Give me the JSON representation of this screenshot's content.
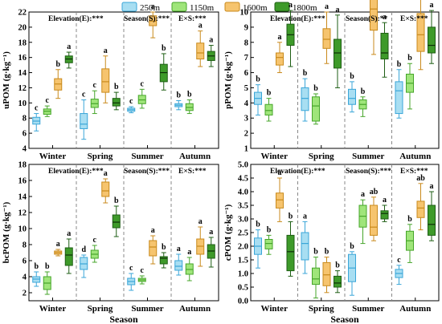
{
  "legend": [
    {
      "label": "250m",
      "color": "#a8def2",
      "edge": "#3aa6d8"
    },
    {
      "label": "1150m",
      "color": "#9fe57a",
      "edge": "#46a52a"
    },
    {
      "label": "1600m",
      "color": "#f6c46e",
      "edge": "#c98a1c"
    },
    {
      "label": "1800m",
      "color": "#3e9a2a",
      "edge": "#1e5e14"
    }
  ],
  "x_label": "Season",
  "stats_text": {
    "elev": "Elevation(E):***",
    "season": "Season(S):***",
    "season_pp": "Season(S):**",
    "exs": "E×S:***"
  },
  "chart_data": [
    {
      "type": "box",
      "ylabel": "uPOM (g·kg⁻¹)",
      "ylim": [
        4,
        22
      ],
      "yticks": [
        4,
        6,
        8,
        10,
        12,
        14,
        16,
        18,
        20,
        22
      ],
      "categories": [
        "Winter",
        "Spring",
        "Summer",
        "Autumn"
      ],
      "stats": [
        "Elevation(E):***",
        "Season(S):***",
        "E×S:***"
      ],
      "series": [
        {
          "name": "250m",
          "boxes": [
            [
              6.3,
              7.2,
              7.6,
              8.1,
              8.6
            ],
            [
              5.2,
              6.6,
              7.2,
              8.6,
              10.4
            ],
            [
              8.7,
              8.9,
              9.1,
              9.3,
              9.5
            ],
            [
              9.1,
              9.5,
              9.7,
              9.9,
              10.3
            ]
          ],
          "letters": [
            "c",
            "c",
            "c",
            "b"
          ]
        },
        {
          "name": "1150m",
          "boxes": [
            [
              8.2,
              8.5,
              8.9,
              9.2,
              9.6
            ],
            [
              8.6,
              9.4,
              9.9,
              10.5,
              11.6
            ],
            [
              9.3,
              9.9,
              10.4,
              11.0,
              11.8
            ],
            [
              8.6,
              9.0,
              9.4,
              9.9,
              10.4
            ]
          ],
          "letters": [
            "c",
            "c",
            "c",
            "b"
          ]
        },
        {
          "name": "1600m",
          "boxes": [
            [
              10.6,
              11.7,
              12.5,
              13.2,
              14.4
            ],
            [
              10.0,
              11.4,
              12.8,
              14.5,
              16.2
            ],
            [
              18.6,
              20.2,
              20.8,
              21.5,
              22.0
            ],
            [
              14.8,
              15.8,
              16.6,
              17.9,
              19.5
            ]
          ],
          "letters": [
            "b",
            "a",
            "a",
            "a"
          ]
        },
        {
          "name": "1800m",
          "boxes": [
            [
              14.6,
              15.3,
              15.8,
              16.2,
              16.7
            ],
            [
              9.1,
              9.6,
              10.0,
              10.6,
              11.4
            ],
            [
              11.7,
              12.8,
              14.0,
              15.1,
              16.5
            ],
            [
              14.8,
              15.6,
              16.2,
              16.8,
              17.6
            ]
          ],
          "letters": [
            "a",
            "b",
            "b",
            "a"
          ]
        }
      ]
    },
    {
      "type": "box",
      "ylabel": "pPOM (g·kg⁻¹)",
      "ylim": [
        1,
        10
      ],
      "yticks": [
        1,
        2,
        3,
        4,
        5,
        6,
        7,
        8,
        9,
        10
      ],
      "categories": [
        "Winter",
        "Spring",
        "Summer",
        "Autumn"
      ],
      "stats": [
        "Elevation(E):***",
        "Season(S):**",
        "E×S:***"
      ],
      "series": [
        {
          "name": "250m",
          "boxes": [
            [
              3.2,
              3.9,
              4.3,
              4.7,
              5.2
            ],
            [
              2.8,
              3.5,
              4.3,
              5.0,
              5.6
            ],
            [
              3.4,
              3.9,
              4.3,
              4.9,
              5.4
            ],
            [
              3.0,
              3.3,
              4.8,
              5.4,
              6.2
            ]
          ],
          "letters": [
            "b",
            "b",
            "b",
            "b"
          ]
        },
        {
          "name": "1150m",
          "boxes": [
            [
              2.8,
              3.2,
              3.5,
              3.9,
              4.3
            ],
            [
              2.6,
              2.8,
              3.8,
              4.4,
              4.6
            ],
            [
              3.1,
              3.6,
              3.9,
              4.2,
              4.4
            ],
            [
              3.6,
              4.7,
              5.3,
              5.9,
              6.6
            ]
          ],
          "letters": [
            "b",
            "b",
            "b",
            "b"
          ]
        },
        {
          "name": "1600m",
          "boxes": [
            [
              6.0,
              6.5,
              7.0,
              7.3,
              8.0
            ],
            [
              6.6,
              7.6,
              8.2,
              8.9,
              10.0
            ],
            [
              7.2,
              8.8,
              10.2,
              11.5,
              12.8
            ],
            [
              6.2,
              7.4,
              8.5,
              9.9,
              11.4
            ]
          ],
          "letters": [
            "a",
            "a",
            "a",
            "a"
          ]
        },
        {
          "name": "1800m",
          "boxes": [
            [
              6.4,
              7.8,
              8.5,
              9.2,
              10.1
            ],
            [
              5.0,
              6.3,
              7.3,
              8.2,
              9.8
            ],
            [
              5.7,
              6.9,
              7.3,
              8.6,
              9.3
            ],
            [
              6.6,
              7.3,
              7.8,
              9.0,
              10.1
            ]
          ],
          "letters": [
            "a",
            "a",
            "a",
            "a"
          ]
        }
      ]
    },
    {
      "type": "box",
      "ylabel": "bcPOM (g·kg⁻¹)",
      "ylim": [
        1,
        18
      ],
      "yticks": [
        2,
        4,
        6,
        8,
        10,
        12,
        14,
        16,
        18
      ],
      "categories": [
        "Winter",
        "Spring",
        "Summer",
        "Autumn"
      ],
      "stats": [
        "Elevation(E):***",
        "Season(S):***",
        "E×S:***"
      ],
      "series": [
        {
          "name": "250m",
          "boxes": [
            [
              2.8,
              3.3,
              3.7,
              4.0,
              4.6
            ],
            [
              3.9,
              4.9,
              5.6,
              6.4,
              6.7
            ],
            [
              2.3,
              3.0,
              3.4,
              3.8,
              4.4
            ],
            [
              4.2,
              4.8,
              5.3,
              6.0,
              6.8
            ]
          ],
          "letters": [
            "b",
            "d",
            "c",
            "a"
          ]
        },
        {
          "name": "1150m",
          "boxes": [
            [
              1.8,
              2.4,
              3.2,
              4.0,
              4.6
            ],
            [
              5.8,
              6.3,
              6.8,
              7.3,
              7.9
            ],
            [
              3.1,
              3.4,
              3.6,
              3.8,
              4.1
            ],
            [
              3.5,
              4.3,
              4.9,
              5.6,
              6.4
            ]
          ],
          "letters": [
            "b",
            "c",
            "c",
            "a"
          ]
        },
        {
          "name": "1600m",
          "boxes": [
            [
              6.6,
              6.8,
              7.0,
              7.2,
              7.4
            ],
            [
              13.2,
              14.0,
              14.7,
              15.8,
              16.2
            ],
            [
              5.6,
              6.6,
              7.7,
              8.5,
              9.1
            ],
            [
              5.3,
              6.8,
              7.8,
              8.7,
              10.2
            ]
          ],
          "letters": [
            "a",
            "a",
            "a",
            "a"
          ]
        },
        {
          "name": "1800m",
          "boxes": [
            [
              4.4,
              5.4,
              6.7,
              7.6,
              8.7
            ],
            [
              9.0,
              10.1,
              10.8,
              11.7,
              12.8
            ],
            [
              5.1,
              5.6,
              6.3,
              6.5,
              7.0
            ],
            [
              5.2,
              6.3,
              7.2,
              8.0,
              8.9
            ]
          ],
          "letters": [
            "a",
            "b",
            "b",
            "a"
          ]
        }
      ]
    },
    {
      "type": "box",
      "ylabel": "cPOM (g·kg⁻¹)",
      "ylim": [
        0,
        5
      ],
      "yticks": [
        0.0,
        0.5,
        1.0,
        1.5,
        2.0,
        2.5,
        3.0,
        3.5,
        4.0,
        4.5,
        5.0
      ],
      "categories": [
        "Winter",
        "Spring",
        "Summer",
        "Autumn"
      ],
      "stats": [
        "Elevation(E):***",
        "Season(S):***",
        "E×S:***"
      ],
      "series": [
        {
          "name": "250m",
          "boxes": [
            [
              1.2,
              1.7,
              2.0,
              2.3,
              2.6
            ],
            [
              1.0,
              1.5,
              2.1,
              2.5,
              2.9
            ],
            [
              0.2,
              0.7,
              1.2,
              1.7,
              1.8
            ],
            [
              0.6,
              0.85,
              1.0,
              1.15,
              1.3
            ]
          ],
          "letters": [
            "b",
            "a",
            "b",
            "c"
          ]
        },
        {
          "name": "1150m",
          "boxes": [
            [
              1.7,
              1.9,
              2.1,
              2.25,
              2.4
            ],
            [
              0.1,
              0.6,
              0.8,
              1.2,
              1.6
            ],
            [
              2.1,
              2.7,
              3.1,
              3.5,
              3.7
            ],
            [
              1.4,
              1.85,
              2.2,
              2.55,
              2.8
            ]
          ],
          "letters": [
            "b",
            "b",
            "a",
            "b"
          ]
        },
        {
          "name": "1600m",
          "boxes": [
            [
              2.9,
              3.4,
              3.7,
              3.95,
              4.5
            ],
            [
              0.3,
              0.55,
              0.95,
              1.4,
              1.6
            ],
            [
              2.2,
              2.4,
              2.7,
              3.5,
              3.8
            ],
            [
              2.6,
              3.05,
              3.4,
              3.65,
              4.3
            ]
          ],
          "letters": [
            "a",
            "b",
            "ab",
            "ab"
          ]
        },
        {
          "name": "1800m",
          "boxes": [
            [
              0.9,
              1.1,
              1.8,
              2.4,
              2.9
            ],
            [
              0.3,
              0.5,
              0.65,
              0.9,
              1.1
            ],
            [
              2.9,
              3.0,
              3.2,
              3.3,
              3.5
            ],
            [
              2.2,
              2.4,
              2.8,
              3.5,
              4.0
            ]
          ],
          "letters": [
            "b",
            "b",
            "a",
            "a"
          ]
        }
      ]
    }
  ]
}
